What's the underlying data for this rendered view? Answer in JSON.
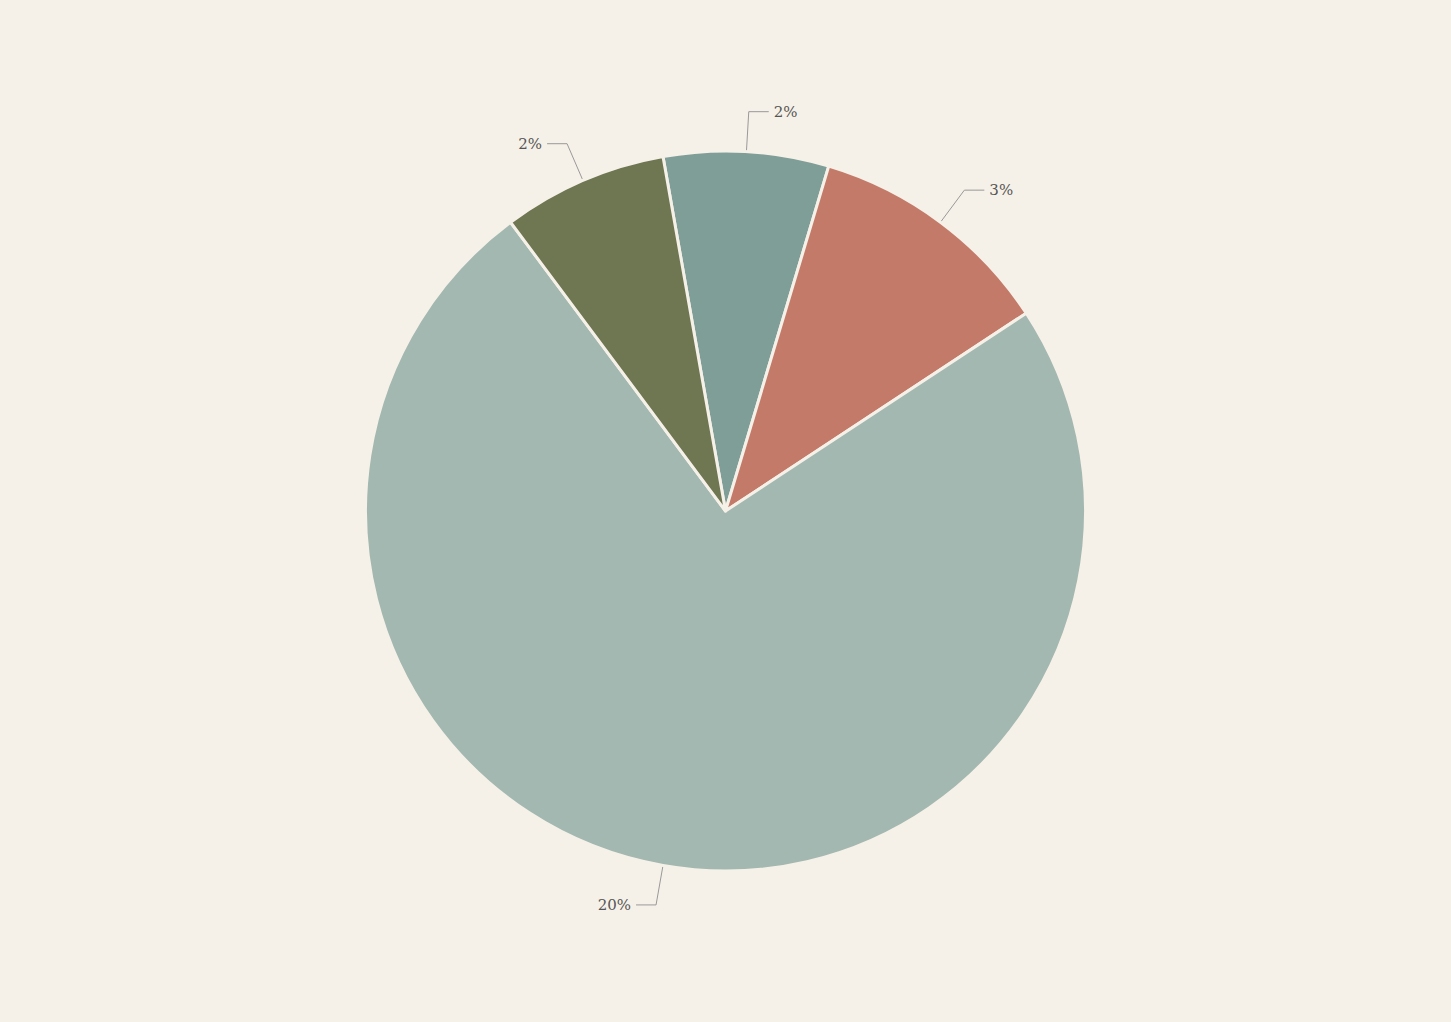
{
  "chart_data": {
    "type": "pie",
    "values": [
      2,
      3,
      20,
      2
    ],
    "value_labels": [
      "2%",
      "3%",
      "20%",
      "2%"
    ],
    "colors": [
      "#7f9e98",
      "#c47a69",
      "#a3b8b0",
      "#6f7652"
    ],
    "data_labels": true
  }
}
